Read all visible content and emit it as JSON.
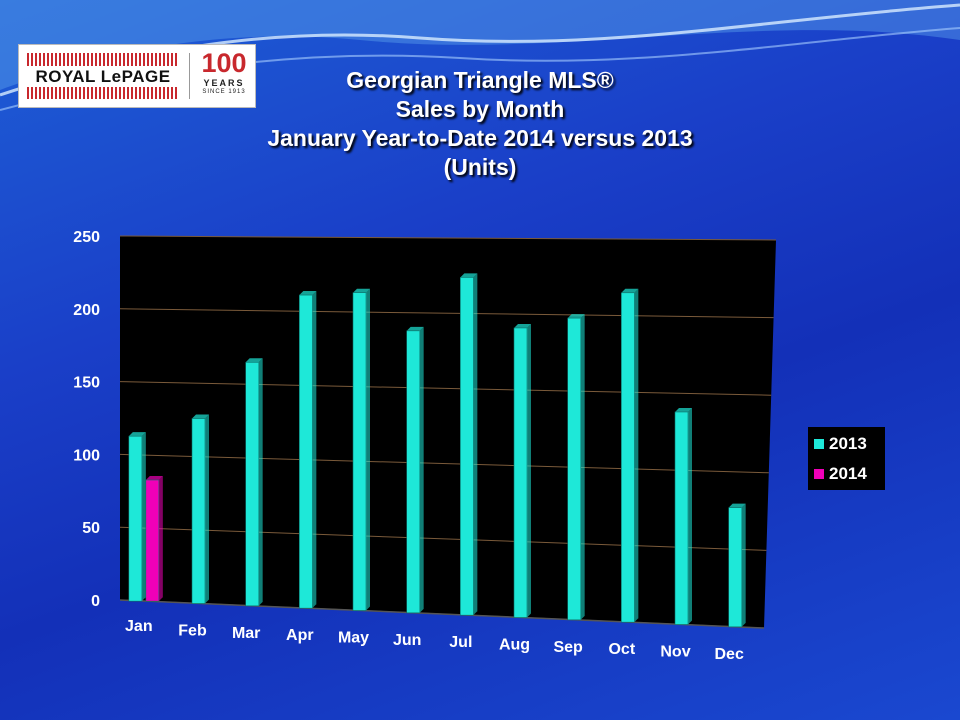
{
  "logo": {
    "brand_text": "ROYAL LePAGE",
    "anniversary_number": "100",
    "anniversary_word": "YEARS",
    "since_text": "SINCE 1913",
    "colors": {
      "red": "#c8282d",
      "text": "#111111"
    }
  },
  "chart_data": {
    "type": "bar",
    "title_lines": [
      "Georgian Triangle MLS®",
      "Sales by Month",
      "January Year-to-Date 2014 versus 2013",
      "(Units)"
    ],
    "categories": [
      "Jan",
      "Feb",
      "Mar",
      "Apr",
      "May",
      "Jun",
      "Jul",
      "Aug",
      "Sep",
      "Oct",
      "Nov",
      "Dec"
    ],
    "series": [
      {
        "name": "2013",
        "color": "#1ee8d8",
        "values": [
          113,
          126,
          165,
          211,
          213,
          188,
          224,
          191,
          198,
          215,
          138,
          77
        ]
      },
      {
        "name": "2014",
        "color": "#f000b8",
        "values": [
          83,
          null,
          null,
          null,
          null,
          null,
          null,
          null,
          null,
          null,
          null,
          null
        ]
      }
    ],
    "y_ticks": [
      "0",
      "50",
      "100",
      "150",
      "200",
      "250"
    ],
    "ylim": [
      0,
      250
    ],
    "grid": true,
    "legend_position": "right",
    "plot_background": "#000000"
  }
}
